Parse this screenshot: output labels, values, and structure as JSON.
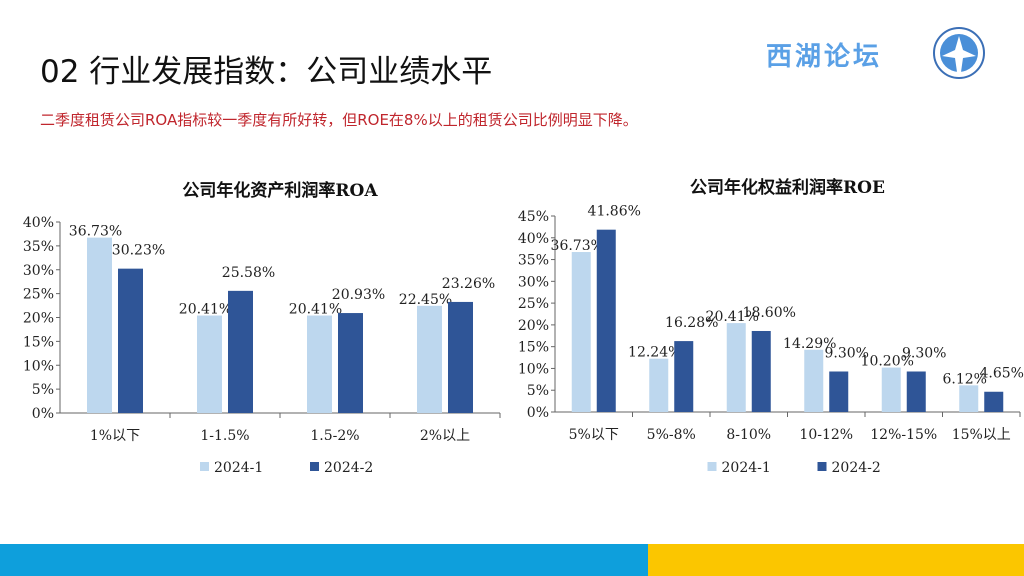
{
  "header": {
    "title": "02 行业发展指数：公司业绩水平",
    "subtitle": "二季度租赁公司ROA指标较一季度有所好转，但ROE在8%以上的租赁公司比例明显下降。",
    "brand": "西湖论坛"
  },
  "colors": {
    "series1": "#bdd7ee",
    "series2": "#2f5597",
    "band_blue": "#0e9fdc",
    "band_yellow": "#fbc600",
    "subtitle": "#c0262d"
  },
  "chart_data": [
    {
      "type": "bar",
      "title": "公司年化资产利润率ROA",
      "categories": [
        "1%以下",
        "1-1.5%",
        "1.5-2%",
        "2%以上"
      ],
      "series": [
        {
          "name": "2024-1",
          "values": [
            36.73,
            20.41,
            20.41,
            22.45
          ]
        },
        {
          "name": "2024-2",
          "values": [
            30.23,
            25.58,
            20.93,
            23.26
          ]
        }
      ],
      "ylim": [
        0,
        40
      ],
      "yticks": [
        "0%",
        "5%",
        "10%",
        "15%",
        "20%",
        "25%",
        "30%",
        "35%",
        "40%"
      ],
      "legend": "bottom",
      "grid": false
    },
    {
      "type": "bar",
      "title": "公司年化权益利润率ROE",
      "categories": [
        "5%以下",
        "5%-8%",
        "8-10%",
        "10-12%",
        "12%-15%",
        "15%以上"
      ],
      "series": [
        {
          "name": "2024-1",
          "values": [
            36.73,
            12.24,
            20.41,
            14.29,
            10.2,
            6.12
          ]
        },
        {
          "name": "2024-2",
          "values": [
            41.86,
            16.28,
            18.6,
            9.3,
            9.3,
            4.65
          ]
        }
      ],
      "ylim": [
        0,
        45
      ],
      "yticks": [
        "0%",
        "5%",
        "10%",
        "15%",
        "20%",
        "25%",
        "30%",
        "35%",
        "40%",
        "45%"
      ],
      "legend": "bottom",
      "grid": false
    }
  ]
}
